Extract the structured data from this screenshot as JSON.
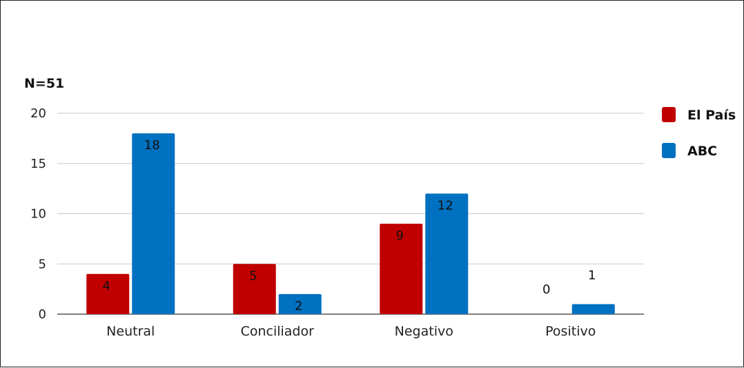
{
  "chart_data": {
    "type": "bar",
    "title": "N=51",
    "categories": [
      "Neutral",
      "Conciliador",
      "Negativo",
      "Positivo"
    ],
    "series": [
      {
        "name": "El País",
        "values": [
          4,
          5,
          9,
          0
        ],
        "color": "#c00000"
      },
      {
        "name": "ABC",
        "values": [
          18,
          2,
          12,
          1
        ],
        "color": "#0070c0"
      }
    ],
    "ylim": [
      0,
      20
    ],
    "yticks": [
      0,
      5,
      10,
      15,
      20
    ],
    "grid": true,
    "legend": "right",
    "data_labels": true
  }
}
